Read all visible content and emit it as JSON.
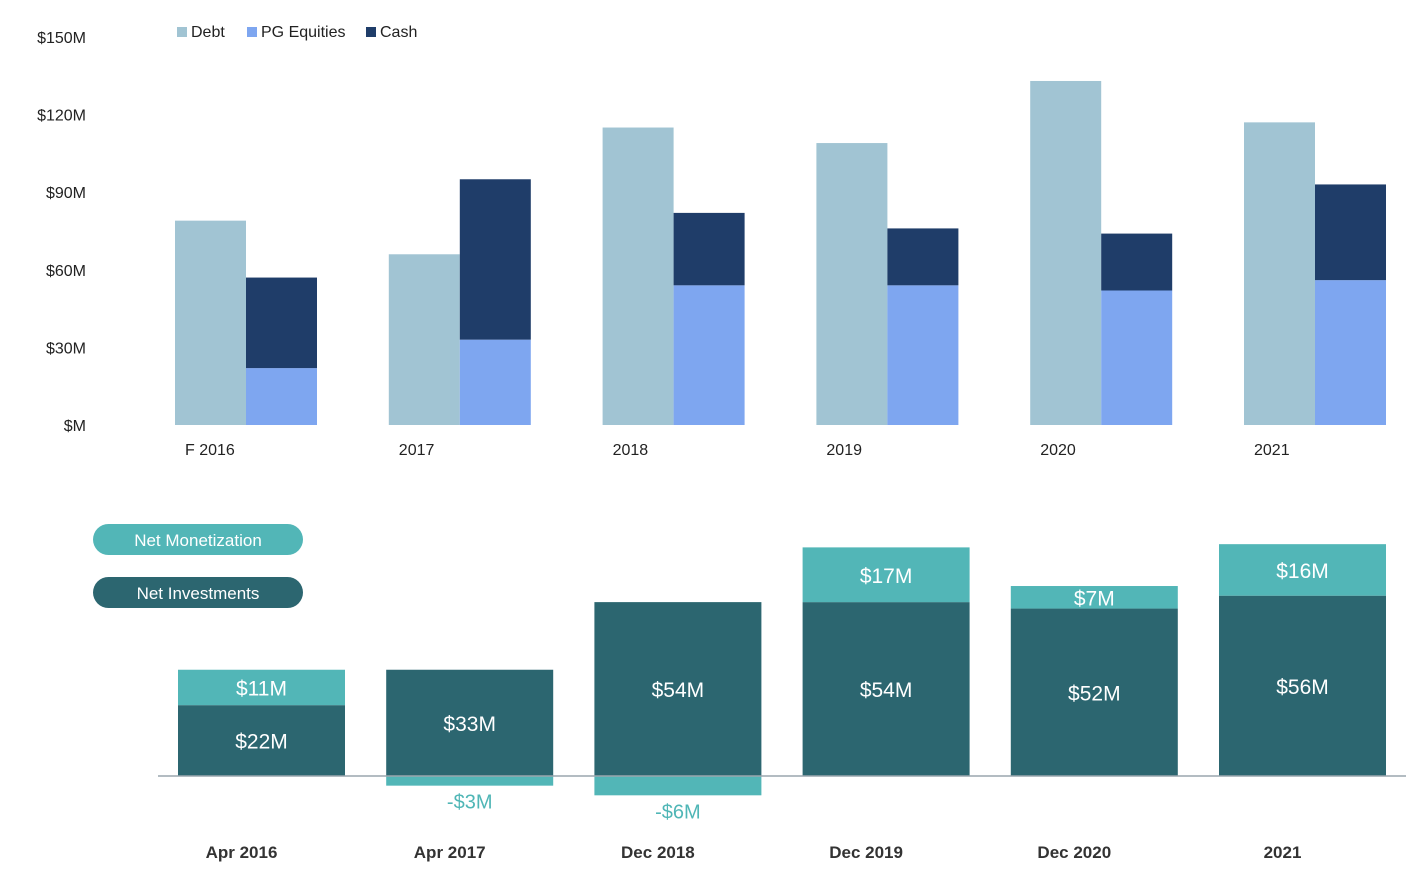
{
  "colors": {
    "debt": "#a1c4d3",
    "pg_equities": "#7ea6f0",
    "cash": "#1f3d69",
    "net_monetization": "#52b6b7",
    "net_investments": "#2c6670",
    "neg_label": "#4fb6b6"
  },
  "chart_data": [
    {
      "type": "bar",
      "stacked_partially": true,
      "categories": [
        "F 2016",
        "2017",
        "2018",
        "2019",
        "2020",
        "2021"
      ],
      "ylim": [
        0,
        150
      ],
      "yticks": [
        0,
        30,
        60,
        90,
        120,
        150
      ],
      "ytick_labels": [
        "$M",
        "$30M",
        "$60M",
        "$90M",
        "$120M",
        "$150M"
      ],
      "legend": {
        "placement": "top-left",
        "entries": [
          "Debt",
          "PG Equities",
          "Cash"
        ]
      },
      "series": [
        {
          "name": "Debt",
          "stack": "a",
          "values": [
            79,
            66,
            115,
            109,
            133,
            117
          ]
        },
        {
          "name": "PG Equities",
          "stack": "b",
          "values": [
            22,
            33,
            54,
            54,
            52,
            56
          ]
        },
        {
          "name": "Cash",
          "stack": "b",
          "values": [
            35,
            62,
            28,
            22,
            22,
            37
          ]
        }
      ]
    },
    {
      "type": "bar",
      "stacked": true,
      "categories": [
        "Apr 2016",
        "Apr 2017",
        "Dec  2018",
        "Dec 2019",
        "Dec 2020",
        "2021"
      ],
      "legend": {
        "placement": "top-left",
        "entries": [
          "Net Monetization",
          "Net Investments"
        ]
      },
      "series": [
        {
          "name": "Net Investments",
          "values": [
            22,
            33,
            54,
            54,
            52,
            56
          ],
          "labels": [
            "$22M",
            "$33M",
            "$54M",
            "$54M",
            "$52M",
            "$56M"
          ]
        },
        {
          "name": "Net Monetization",
          "values": [
            11,
            -3,
            -6,
            17,
            7,
            16
          ],
          "labels": [
            "$11M",
            "-$3M",
            "-$6M",
            "$17M",
            "$7M",
            "$16M"
          ]
        }
      ]
    }
  ]
}
